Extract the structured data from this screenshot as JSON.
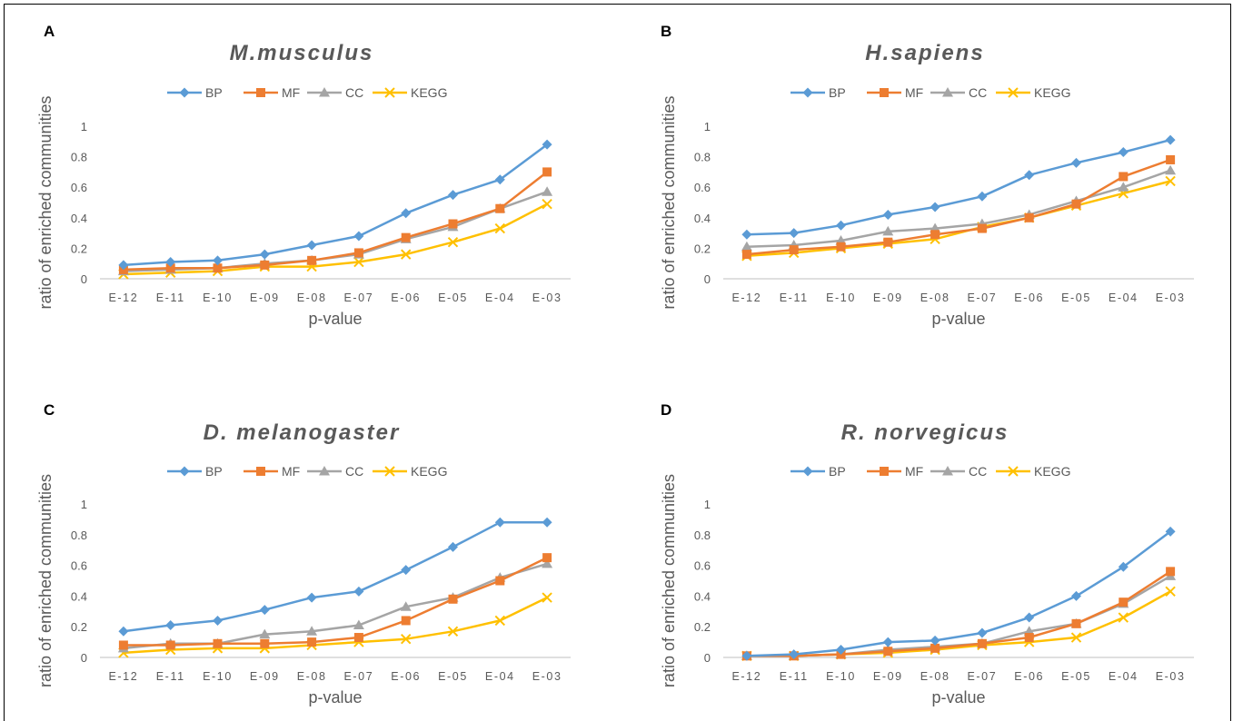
{
  "chart_data": [
    {
      "panel_label": "A",
      "type": "line",
      "title": "M.musculus",
      "xlabel": "p-value",
      "ylabel": "ratio of enriched communities",
      "ylim": [
        0,
        1
      ],
      "yticks": [
        "0",
        "0.2",
        "0.4",
        "0.6",
        "0.8",
        "1"
      ],
      "categories": [
        "E-12",
        "E-11",
        "E-10",
        "E-09",
        "E-08",
        "E-07",
        "E-06",
        "E-05",
        "E-04",
        "E-03"
      ],
      "legend_position": "top",
      "grid": false,
      "series": [
        {
          "name": "BP",
          "color": "#5B9BD5",
          "marker": "diamond",
          "values": [
            0.09,
            0.11,
            0.12,
            0.16,
            0.22,
            0.28,
            0.43,
            0.55,
            0.65,
            0.88
          ]
        },
        {
          "name": "MF",
          "color": "#ED7D31",
          "marker": "square",
          "values": [
            0.06,
            0.07,
            0.07,
            0.09,
            0.12,
            0.17,
            0.27,
            0.36,
            0.46,
            0.7
          ]
        },
        {
          "name": "CC",
          "color": "#A5A5A5",
          "marker": "triangle",
          "values": [
            0.05,
            0.06,
            0.07,
            0.1,
            0.12,
            0.16,
            0.26,
            0.34,
            0.46,
            0.57
          ]
        },
        {
          "name": "KEGG",
          "color": "#FFC000",
          "marker": "x",
          "values": [
            0.03,
            0.04,
            0.05,
            0.08,
            0.08,
            0.11,
            0.16,
            0.24,
            0.33,
            0.49
          ]
        }
      ]
    },
    {
      "panel_label": "B",
      "type": "line",
      "title": "H.sapiens",
      "xlabel": "p-value",
      "ylabel": "ratio of enriched communities",
      "ylim": [
        0,
        1
      ],
      "yticks": [
        "0",
        "0.2",
        "0.4",
        "0.6",
        "0.8",
        "1"
      ],
      "categories": [
        "E-12",
        "E-11",
        "E-10",
        "E-09",
        "E-08",
        "E-07",
        "E-06",
        "E-05",
        "E-04",
        "E-03"
      ],
      "legend_position": "top",
      "grid": false,
      "series": [
        {
          "name": "BP",
          "color": "#5B9BD5",
          "marker": "diamond",
          "values": [
            0.29,
            0.3,
            0.35,
            0.42,
            0.47,
            0.54,
            0.68,
            0.76,
            0.83,
            0.91
          ]
        },
        {
          "name": "MF",
          "color": "#ED7D31",
          "marker": "square",
          "values": [
            0.16,
            0.19,
            0.21,
            0.24,
            0.29,
            0.33,
            0.4,
            0.49,
            0.67,
            0.78
          ]
        },
        {
          "name": "CC",
          "color": "#A5A5A5",
          "marker": "triangle",
          "values": [
            0.21,
            0.22,
            0.25,
            0.31,
            0.33,
            0.36,
            0.42,
            0.51,
            0.6,
            0.71
          ]
        },
        {
          "name": "KEGG",
          "color": "#FFC000",
          "marker": "x",
          "values": [
            0.15,
            0.17,
            0.2,
            0.23,
            0.26,
            0.34,
            0.4,
            0.48,
            0.56,
            0.64
          ]
        }
      ]
    },
    {
      "panel_label": "C",
      "type": "line",
      "title": "D. melanogaster",
      "xlabel": "p-value",
      "ylabel": "ratio of enriched communities",
      "ylim": [
        0,
        1
      ],
      "yticks": [
        "0",
        "0.2",
        "0.4",
        "0.6",
        "0.8",
        "1"
      ],
      "categories": [
        "E-12",
        "E-11",
        "E-10",
        "E-09",
        "E-08",
        "E-07",
        "E-06",
        "E-05",
        "E-04",
        "E-03"
      ],
      "legend_position": "top",
      "grid": false,
      "series": [
        {
          "name": "BP",
          "color": "#5B9BD5",
          "marker": "diamond",
          "values": [
            0.17,
            0.21,
            0.24,
            0.31,
            0.39,
            0.43,
            0.57,
            0.72,
            0.88,
            0.88
          ]
        },
        {
          "name": "MF",
          "color": "#ED7D31",
          "marker": "square",
          "values": [
            0.08,
            0.08,
            0.09,
            0.09,
            0.1,
            0.13,
            0.24,
            0.38,
            0.5,
            0.65
          ]
        },
        {
          "name": "CC",
          "color": "#A5A5A5",
          "marker": "triangle",
          "values": [
            0.06,
            0.09,
            0.09,
            0.15,
            0.17,
            0.21,
            0.33,
            0.39,
            0.52,
            0.61
          ]
        },
        {
          "name": "KEGG",
          "color": "#FFC000",
          "marker": "x",
          "values": [
            0.03,
            0.05,
            0.06,
            0.06,
            0.08,
            0.1,
            0.12,
            0.17,
            0.24,
            0.39
          ]
        }
      ]
    },
    {
      "panel_label": "D",
      "type": "line",
      "title": "R. norvegicus",
      "xlabel": "p-value",
      "ylabel": "ratio of enriched communities",
      "ylim": [
        0,
        1
      ],
      "yticks": [
        "0",
        "0.2",
        "0.4",
        "0.6",
        "0.8",
        "1"
      ],
      "categories": [
        "E-12",
        "E-11",
        "E-10",
        "E-09",
        "E-08",
        "E-07",
        "E-06",
        "E-05",
        "E-04",
        "E-03"
      ],
      "legend_position": "top",
      "grid": false,
      "series": [
        {
          "name": "BP",
          "color": "#5B9BD5",
          "marker": "diamond",
          "values": [
            0.01,
            0.02,
            0.05,
            0.1,
            0.11,
            0.16,
            0.26,
            0.4,
            0.59,
            0.82
          ]
        },
        {
          "name": "MF",
          "color": "#ED7D31",
          "marker": "square",
          "values": [
            0.01,
            0.01,
            0.02,
            0.04,
            0.06,
            0.09,
            0.13,
            0.22,
            0.36,
            0.56
          ]
        },
        {
          "name": "CC",
          "color": "#A5A5A5",
          "marker": "triangle",
          "values": [
            0.01,
            0.01,
            0.02,
            0.05,
            0.07,
            0.09,
            0.17,
            0.22,
            0.35,
            0.53
          ]
        },
        {
          "name": "KEGG",
          "color": "#FFC000",
          "marker": "x",
          "values": [
            0.01,
            0.01,
            0.02,
            0.03,
            0.05,
            0.08,
            0.1,
            0.13,
            0.26,
            0.43
          ]
        }
      ]
    }
  ]
}
